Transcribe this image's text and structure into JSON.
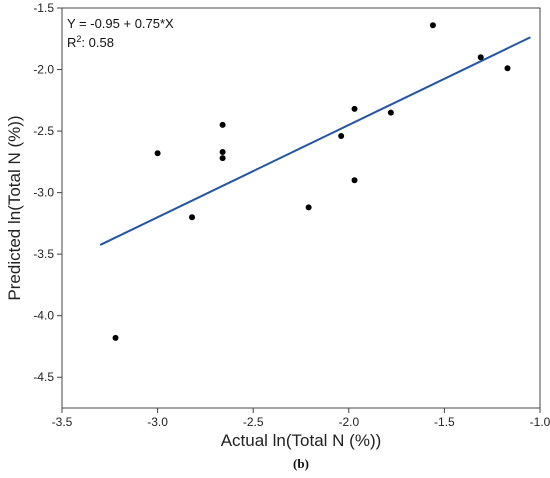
{
  "chart_data": {
    "type": "scatter",
    "xlabel": "Actual ln(Total N (%))",
    "ylabel": "Predicted ln(Total N (%))",
    "xlim": [
      -3.5,
      -1.0
    ],
    "ylim": [
      -4.75,
      -1.5
    ],
    "xticks": [
      "-3.5",
      "-3.0",
      "-2.5",
      "-2.0",
      "-1.5",
      "-1.0"
    ],
    "yticks": [
      "-1.5",
      "-2.0",
      "-2.5",
      "-3.0",
      "-3.5",
      "-4.0",
      "-4.5"
    ],
    "grid": false,
    "points": [
      {
        "x": -3.22,
        "y": -4.18
      },
      {
        "x": -3.0,
        "y": -2.68
      },
      {
        "x": -2.82,
        "y": -3.2
      },
      {
        "x": -2.66,
        "y": -2.45
      },
      {
        "x": -2.66,
        "y": -2.67
      },
      {
        "x": -2.66,
        "y": -2.72
      },
      {
        "x": -2.21,
        "y": -3.12
      },
      {
        "x": -2.04,
        "y": -2.54
      },
      {
        "x": -1.97,
        "y": -2.32
      },
      {
        "x": -1.97,
        "y": -2.9
      },
      {
        "x": -1.78,
        "y": -2.35
      },
      {
        "x": -1.56,
        "y": -1.64
      },
      {
        "x": -1.31,
        "y": -1.9
      },
      {
        "x": -1.17,
        "y": -1.99
      }
    ],
    "fit_line": {
      "intercept": -0.95,
      "slope": 0.75,
      "x_range": [
        -3.3,
        -1.05
      ],
      "color": "#2255a4"
    },
    "annotations": {
      "equation": "Y = -0.95 + 0.75*X",
      "r2_prefix": "R",
      "r2_superscript": "2",
      "r2_value": ": 0.58"
    },
    "caption": "(b)"
  }
}
